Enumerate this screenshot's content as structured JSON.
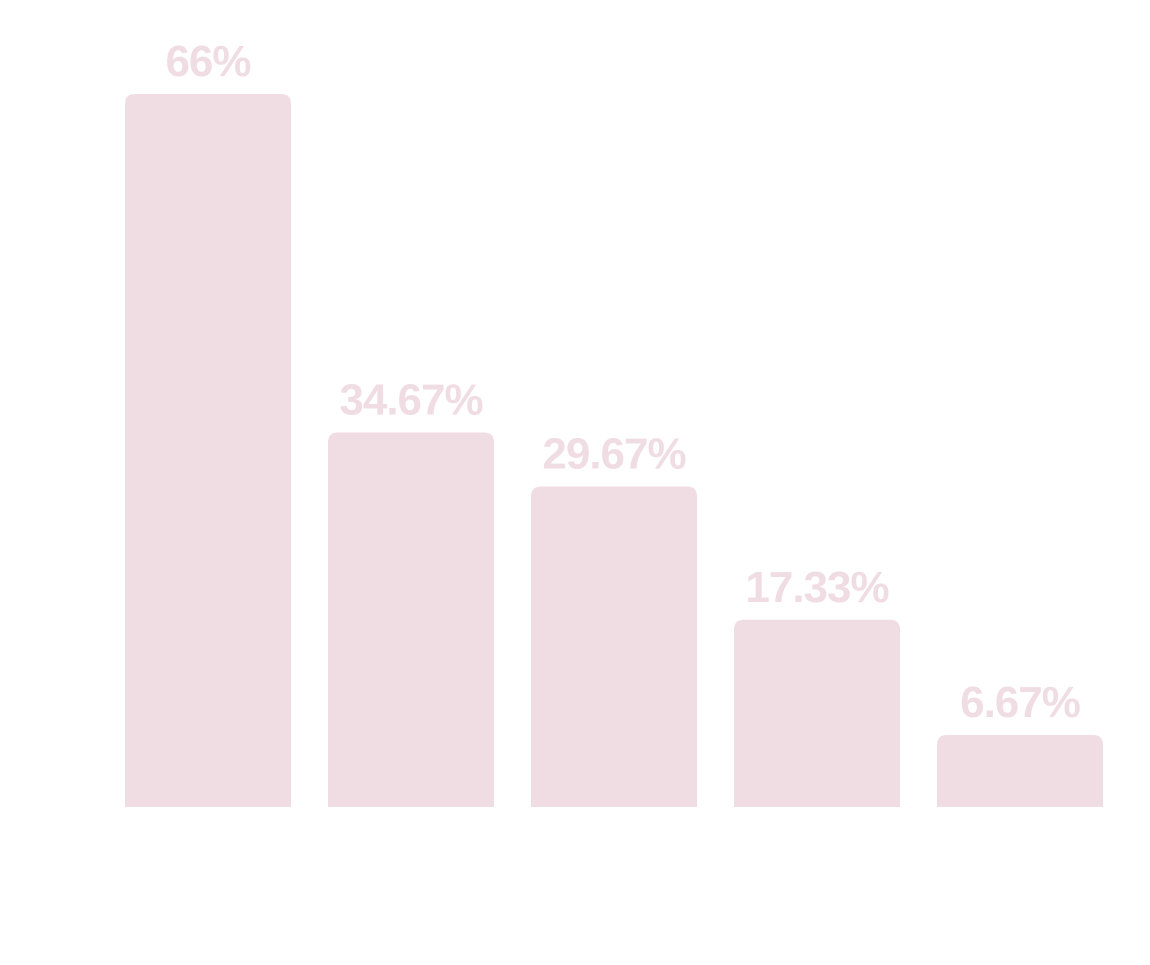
{
  "chart_data": {
    "type": "bar",
    "title": "",
    "xlabel": "",
    "ylabel": "",
    "categories": [
      "",
      "",
      "",
      "",
      ""
    ],
    "values": [
      66,
      34.67,
      29.67,
      17.33,
      6.67
    ],
    "data_labels": [
      "66%",
      "34.67%",
      "29.67%",
      "17.33%",
      "6.67%"
    ],
    "unit": "%",
    "ylim": [
      0,
      66
    ],
    "grid": false,
    "legend": "none",
    "bar_color": "#f0dde3",
    "label_color": "#f0dde3"
  }
}
